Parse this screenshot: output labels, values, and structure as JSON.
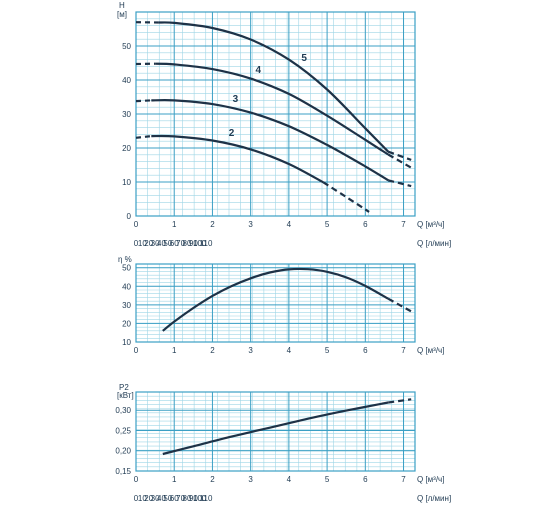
{
  "colors": {
    "grid_minor": "#9fd6e6",
    "grid_major": "#3b9fc4",
    "curve": "#1e3247",
    "text": "#1f3a52",
    "background": "#ffffff"
  },
  "chart_data": [
    {
      "type": "line",
      "title": "",
      "ylabel": "H",
      "yunit": "[м]",
      "xlabel_primary": "Q [м³/ч]",
      "xlabel_secondary": "Q [л/мин]",
      "xlim": [
        0,
        7.3
      ],
      "ylim": [
        0,
        60
      ],
      "xticks": [
        "0",
        "1",
        "2",
        "3",
        "4",
        "5",
        "6",
        "7"
      ],
      "yticks": [
        "0",
        "10",
        "20",
        "30",
        "40",
        "50"
      ],
      "secondary_xticks": [
        "0",
        "10",
        "20",
        "30",
        "40",
        "50",
        "60",
        "70",
        "80",
        "90",
        "100",
        "110"
      ],
      "grid": true,
      "series": [
        {
          "name": "2",
          "solid": [
            [
              0.4,
              23.5
            ],
            [
              1,
              23.4
            ],
            [
              2,
              22.2
            ],
            [
              3,
              19.6
            ],
            [
              4,
              15.3
            ],
            [
              4.9,
              9.9
            ]
          ],
          "dashed": [
            [
              0,
              23
            ],
            [
              0.4,
              23.5
            ]
          ],
          "dashed_end": [
            [
              4.9,
              9.9
            ],
            [
              5.5,
              5.6
            ],
            [
              6.1,
              1.2
            ]
          ],
          "label_at": [
            2.5,
            23
          ]
        },
        {
          "name": "3",
          "solid": [
            [
              0.4,
              34
            ],
            [
              1,
              34
            ],
            [
              2,
              32.9
            ],
            [
              3,
              30.4
            ],
            [
              4,
              26.4
            ],
            [
              5,
              20.9
            ],
            [
              6,
              14.6
            ],
            [
              6.6,
              10.5
            ]
          ],
          "dashed": [
            [
              0,
              33.8
            ],
            [
              0.4,
              34
            ]
          ],
          "dashed_end": [
            [
              6.6,
              10.5
            ],
            [
              7.2,
              8.8
            ]
          ],
          "label_at": [
            2.6,
            33
          ]
        },
        {
          "name": "4",
          "solid": [
            [
              0.5,
              44.8
            ],
            [
              1,
              44.6
            ],
            [
              2,
              43.2
            ],
            [
              3,
              40.4
            ],
            [
              4,
              35.9
            ],
            [
              5,
              29.5
            ],
            [
              6,
              22.4
            ],
            [
              6.6,
              18.1
            ]
          ],
          "dashed": [
            [
              0,
              44.7
            ],
            [
              0.5,
              44.8
            ]
          ],
          "dashed_end": [
            [
              6.6,
              18.1
            ],
            [
              7.2,
              14.2
            ]
          ],
          "label_at": [
            3.2,
            41.5
          ]
        },
        {
          "name": "5",
          "solid": [
            [
              0.6,
              56.9
            ],
            [
              1,
              56.8
            ],
            [
              2,
              55.3
            ],
            [
              3,
              51.9
            ],
            [
              4,
              46
            ],
            [
              5,
              37.2
            ],
            [
              6,
              25.8
            ],
            [
              6.6,
              18.9
            ]
          ],
          "dashed": [
            [
              0,
              57
            ],
            [
              0.6,
              56.9
            ]
          ],
          "dashed_end": [
            [
              6.6,
              18.9
            ],
            [
              7.2,
              16.5
            ]
          ],
          "label_at": [
            4.4,
            45
          ]
        }
      ]
    },
    {
      "type": "line",
      "title": "",
      "ylabel": "η %",
      "xlabel_primary": "Q [м³/ч]",
      "xlabel_secondary": "",
      "xlim": [
        0,
        7.3
      ],
      "ylim": [
        10,
        52
      ],
      "xticks": [
        "0",
        "1",
        "2",
        "3",
        "4",
        "5",
        "6",
        "7"
      ],
      "yticks": [
        "10",
        "20",
        "30",
        "40",
        "50"
      ],
      "grid": true,
      "series": [
        {
          "name": "",
          "solid": [
            [
              0.7,
              16
            ],
            [
              1,
              21
            ],
            [
              1.5,
              28.3
            ],
            [
              2,
              34.8
            ],
            [
              2.5,
              40.1
            ],
            [
              3,
              44.3
            ],
            [
              3.5,
              47.4
            ],
            [
              4,
              49.1
            ],
            [
              4.5,
              49.2
            ],
            [
              5,
              47.8
            ],
            [
              5.5,
              44.8
            ],
            [
              6,
              40.2
            ],
            [
              6.6,
              33.3
            ]
          ],
          "dashed": [],
          "dashed_end": [
            [
              6.6,
              33.3
            ],
            [
              7.2,
              26.5
            ]
          ],
          "label_at": null
        }
      ]
    },
    {
      "type": "line",
      "title": "",
      "ylabel": "P2",
      "yunit": "[кВт]",
      "xlabel_primary": "Q [м³/ч]",
      "xlabel_secondary": "Q [л/мин]",
      "xlim": [
        0,
        7.3
      ],
      "ylim": [
        0.15,
        0.345
      ],
      "xticks": [
        "0",
        "1",
        "2",
        "3",
        "4",
        "5",
        "6",
        "7"
      ],
      "yticks": [
        "0,15",
        "0,20",
        "0,25",
        "0,30"
      ],
      "secondary_xticks": [
        "0",
        "10",
        "20",
        "30",
        "40",
        "50",
        "60",
        "70",
        "80",
        "90",
        "100",
        "110"
      ],
      "grid": true,
      "series": [
        {
          "name": "",
          "solid": [
            [
              0.7,
              0.192
            ],
            [
              1.5,
              0.211
            ],
            [
              2.5,
              0.235
            ],
            [
              3.5,
              0.257
            ],
            [
              4.5,
              0.279
            ],
            [
              5.5,
              0.299
            ],
            [
              6.6,
              0.319
            ]
          ],
          "dashed": [],
          "dashed_end": [
            [
              6.6,
              0.319
            ],
            [
              7.2,
              0.327
            ]
          ],
          "label_at": null
        }
      ]
    }
  ]
}
